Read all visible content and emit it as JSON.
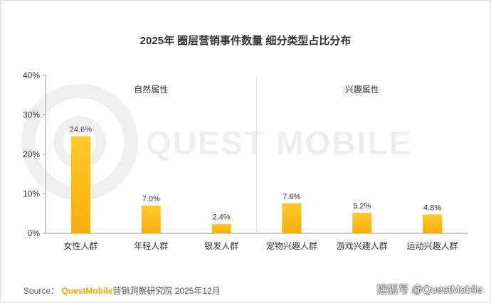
{
  "title": "2025年 圈层营销事件数量 细分类型占比分布",
  "source": {
    "prefix": "Source：",
    "brand": "QuestMobile",
    "suffix": "营销洞察研究院 2025年12月"
  },
  "credit": "搜狐号 @QuestMobile",
  "watermark": "QUEST MOBILE",
  "colors": {
    "bar_top": "#FFC928",
    "bar_bottom": "#F6AE0E",
    "axis": "#9a9a9a",
    "grid": "#e2e2e2"
  },
  "chart_data": {
    "type": "bar",
    "categories": [
      "女性人群",
      "年轻人群",
      "银发人群",
      "宠物兴趣人群",
      "游戏兴趣人群",
      "运动兴趣人群"
    ],
    "values": [
      24.6,
      7.0,
      2.4,
      7.6,
      5.2,
      4.8
    ],
    "value_labels": [
      "24.6%",
      "7.0%",
      "2.4%",
      "7.6%",
      "5.2%",
      "4.8%"
    ],
    "unit": "%",
    "ylim": [
      0,
      40
    ],
    "yticks": [
      0,
      10,
      20,
      30,
      40
    ],
    "ytick_labels": [
      "0%",
      "10%",
      "20%",
      "30%",
      "40%"
    ],
    "groups": [
      {
        "label": "自然属性",
        "categories": [
          "女性人群",
          "年轻人群",
          "银发人群"
        ]
      },
      {
        "label": "兴趣属性",
        "categories": [
          "宠物兴趣人群",
          "游戏兴趣人群",
          "运动兴趣人群"
        ]
      }
    ],
    "grid": false,
    "legend": "none"
  }
}
